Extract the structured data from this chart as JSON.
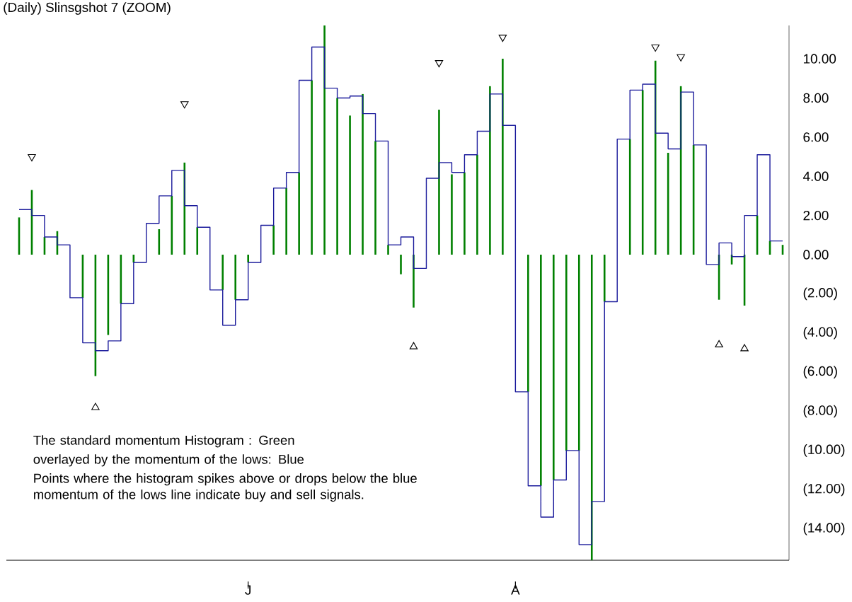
{
  "chart_data": {
    "type": "bar",
    "title": "(Daily) Slinsgshot 7 (ZOOM)",
    "categories": [
      null,
      null,
      null,
      null,
      null,
      null,
      null,
      null,
      null,
      null,
      null,
      null,
      null,
      null,
      null,
      null,
      null,
      null,
      "J",
      null,
      null,
      null,
      null,
      null,
      null,
      null,
      null,
      null,
      null,
      null,
      null,
      null,
      null,
      null,
      null,
      null,
      null,
      null,
      null,
      "A",
      null,
      null,
      null,
      null,
      null,
      null,
      null,
      null,
      null,
      null,
      null,
      null,
      null,
      null,
      null,
      null,
      null,
      null,
      null,
      null,
      null
    ],
    "series": [
      {
        "color": "#008000",
        "values": [
          1.9,
          3.3,
          0.9,
          1.2,
          null,
          -2.2,
          -6.2,
          -4.1,
          -2.5,
          -0.4,
          null,
          1.3,
          3.0,
          4.7,
          1.4,
          null,
          -1.8,
          -2.3,
          -0.4,
          null,
          1.5,
          3.4,
          4.2,
          8.9,
          11.7,
          8.0,
          7.1,
          8.2,
          5.8,
          0.5,
          -1.0,
          -2.7,
          null,
          7.4,
          4.1,
          4.2,
          5.1,
          8.6,
          10.0,
          null,
          -7.0,
          -11.8,
          -11.5,
          -10.0,
          -10.0,
          -15.6,
          -2.4,
          null,
          5.9,
          8.4,
          9.9,
          5.2,
          8.6,
          5.6,
          null,
          -2.3,
          -0.5,
          -2.6,
          2.0,
          0.7,
          0.5
        ]
      },
      {
        "type": "step",
        "color": "#1c1c9c",
        "values": [
          2.3,
          2.0,
          0.9,
          0.5,
          -2.2,
          -4.5,
          -4.9,
          -4.4,
          -2.5,
          -0.4,
          1.6,
          3.0,
          4.3,
          2.5,
          1.4,
          -1.8,
          -3.6,
          -2.3,
          -0.4,
          1.5,
          3.4,
          4.2,
          8.9,
          10.6,
          8.5,
          8.0,
          8.1,
          7.2,
          5.8,
          0.5,
          0.9,
          -0.7,
          3.9,
          4.7,
          4.2,
          5.1,
          6.3,
          8.2,
          6.6,
          -7.0,
          -11.8,
          -13.4,
          -11.5,
          -10.0,
          -14.8,
          -12.6,
          -2.4,
          5.9,
          8.4,
          8.7,
          6.2,
          5.4,
          8.3,
          5.6,
          -0.5,
          0.6,
          -0.1,
          2.0,
          5.1,
          0.7,
          0.7
        ]
      },
      {
        "type": "scatter",
        "color": "#000000",
        "marker": "triangle",
        "values": [
          null,
          5.0,
          null,
          null,
          null,
          null,
          null,
          null,
          null,
          null,
          null,
          null,
          null,
          7.7,
          null,
          null,
          null,
          null,
          null,
          null,
          null,
          null,
          null,
          null,
          null,
          null,
          null,
          null,
          null,
          null,
          null,
          null,
          null,
          9.8,
          null,
          null,
          null,
          null,
          11.1,
          null,
          null,
          null,
          null,
          null,
          null,
          null,
          null,
          null,
          null,
          null,
          10.6,
          null,
          10.1,
          null,
          null,
          null,
          null,
          null,
          null,
          null,
          null
        ]
      },
      {
        "type": "scatter",
        "color": "#000000",
        "marker": "triangle",
        "values": [
          null,
          null,
          null,
          null,
          null,
          null,
          -7.8,
          null,
          null,
          null,
          null,
          null,
          null,
          null,
          null,
          null,
          null,
          null,
          null,
          null,
          null,
          null,
          null,
          null,
          null,
          null,
          null,
          null,
          null,
          null,
          null,
          -4.7,
          null,
          null,
          null,
          null,
          null,
          null,
          null,
          null,
          null,
          null,
          null,
          null,
          null,
          null,
          null,
          null,
          null,
          null,
          null,
          null,
          null,
          null,
          null,
          -4.6,
          null,
          -4.8,
          null,
          null,
          null
        ]
      }
    ],
    "annotations": [
      "The standard momentum Histogram : Green",
      "overlayed by the momentum of the lows: Blue",
      "Points where the histogram spikes above or drops below the blue momentum of the lows line indicate buy and sell signals."
    ],
    "ylim": [
      -15.6,
      11.7
    ],
    "yticks": [
      {
        "value": 10,
        "label": "10.00"
      },
      {
        "value": 8,
        "label": "8.00"
      },
      {
        "value": 6,
        "label": "6.00"
      },
      {
        "value": 4,
        "label": "4.00"
      },
      {
        "value": 2,
        "label": "2.00"
      },
      {
        "value": 0,
        "label": "0.00"
      },
      {
        "value": -2,
        "label": "(2.00)"
      },
      {
        "value": -4,
        "label": "(4.00)"
      },
      {
        "value": -6,
        "label": "(6.00)"
      },
      {
        "value": -8,
        "label": "(8.00)"
      },
      {
        "value": -10,
        "label": "(10.00)"
      },
      {
        "value": -12,
        "label": "(12.00)"
      },
      {
        "value": -14,
        "label": "(14.00)"
      }
    ]
  }
}
